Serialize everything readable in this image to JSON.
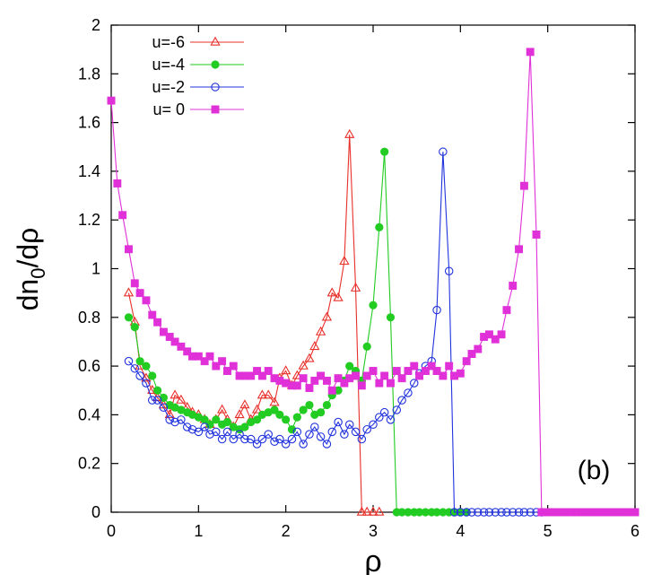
{
  "chart_data": {
    "type": "line",
    "title": "",
    "xlabel": "ρ",
    "ylabel_main": "dn",
    "ylabel_sub": "0",
    "ylabel_tail": "/dρ",
    "xlim": [
      0,
      6
    ],
    "ylim": [
      0,
      2
    ],
    "x_ticks": [
      0,
      1,
      2,
      3,
      4,
      5,
      6
    ],
    "x_tick_labels": [
      "0",
      "1",
      "2",
      "3",
      "4",
      "5",
      "6"
    ],
    "y_ticks": [
      0,
      0.2,
      0.4,
      0.6,
      0.8,
      1,
      1.2,
      1.4,
      1.6,
      1.8,
      2
    ],
    "y_tick_labels": [
      "0",
      "0.2",
      "0.4",
      "0.6",
      "0.8",
      "1",
      "1.2",
      "1.4",
      "1.6",
      "1.8",
      "2"
    ],
    "grid": false,
    "legend_position": "top-left",
    "annotation": "(b)",
    "series": [
      {
        "name": "u=-6",
        "color": "#e8302a",
        "marker": "triangle-open",
        "points": [
          [
            0.2,
            0.9
          ],
          [
            0.27,
            0.78
          ],
          [
            0.33,
            0.6
          ],
          [
            0.4,
            0.55
          ],
          [
            0.47,
            0.5
          ],
          [
            0.53,
            0.47
          ],
          [
            0.6,
            0.44
          ],
          [
            0.67,
            0.4
          ],
          [
            0.73,
            0.48
          ],
          [
            0.8,
            0.46
          ],
          [
            0.87,
            0.43
          ],
          [
            0.93,
            0.41
          ],
          [
            1.0,
            0.4
          ],
          [
            1.07,
            0.38
          ],
          [
            1.13,
            0.36
          ],
          [
            1.2,
            0.38
          ],
          [
            1.27,
            0.42
          ],
          [
            1.33,
            0.38
          ],
          [
            1.4,
            0.35
          ],
          [
            1.47,
            0.4
          ],
          [
            1.53,
            0.44
          ],
          [
            1.6,
            0.38
          ],
          [
            1.67,
            0.42
          ],
          [
            1.73,
            0.48
          ],
          [
            1.8,
            0.48
          ],
          [
            1.87,
            0.45
          ],
          [
            1.93,
            0.55
          ],
          [
            2.0,
            0.58
          ],
          [
            2.07,
            0.52
          ],
          [
            2.13,
            0.56
          ],
          [
            2.2,
            0.6
          ],
          [
            2.27,
            0.63
          ],
          [
            2.33,
            0.68
          ],
          [
            2.4,
            0.74
          ],
          [
            2.47,
            0.8
          ],
          [
            2.53,
            0.9
          ],
          [
            2.6,
            0.88
          ],
          [
            2.67,
            1.03
          ],
          [
            2.73,
            1.55
          ],
          [
            2.8,
            0.92
          ],
          [
            2.87,
            0.0
          ],
          [
            2.93,
            0.0
          ],
          [
            3.0,
            0.0
          ],
          [
            3.07,
            0.0
          ]
        ]
      },
      {
        "name": "u=-4",
        "color": "#22cc22",
        "marker": "circle-filled",
        "points": [
          [
            0.2,
            0.8
          ],
          [
            0.27,
            0.76
          ],
          [
            0.33,
            0.62
          ],
          [
            0.4,
            0.6
          ],
          [
            0.47,
            0.56
          ],
          [
            0.53,
            0.5
          ],
          [
            0.6,
            0.47
          ],
          [
            0.67,
            0.44
          ],
          [
            0.73,
            0.43
          ],
          [
            0.8,
            0.42
          ],
          [
            0.87,
            0.41
          ],
          [
            0.93,
            0.4
          ],
          [
            1.0,
            0.39
          ],
          [
            1.07,
            0.38
          ],
          [
            1.13,
            0.36
          ],
          [
            1.2,
            0.38
          ],
          [
            1.27,
            0.36
          ],
          [
            1.33,
            0.37
          ],
          [
            1.4,
            0.35
          ],
          [
            1.47,
            0.34
          ],
          [
            1.53,
            0.35
          ],
          [
            1.6,
            0.37
          ],
          [
            1.67,
            0.38
          ],
          [
            1.73,
            0.4
          ],
          [
            1.8,
            0.41
          ],
          [
            1.87,
            0.42
          ],
          [
            1.93,
            0.4
          ],
          [
            2.0,
            0.38
          ],
          [
            2.07,
            0.34
          ],
          [
            2.13,
            0.39
          ],
          [
            2.2,
            0.42
          ],
          [
            2.27,
            0.44
          ],
          [
            2.33,
            0.4
          ],
          [
            2.4,
            0.41
          ],
          [
            2.47,
            0.44
          ],
          [
            2.53,
            0.48
          ],
          [
            2.6,
            0.5
          ],
          [
            2.67,
            0.54
          ],
          [
            2.73,
            0.6
          ],
          [
            2.8,
            0.58
          ],
          [
            2.87,
            0.54
          ],
          [
            2.93,
            0.68
          ],
          [
            3.0,
            0.85
          ],
          [
            3.07,
            1.17
          ],
          [
            3.13,
            1.48
          ],
          [
            3.2,
            0.8
          ],
          [
            3.27,
            0.0
          ],
          [
            3.33,
            0.0
          ],
          [
            3.4,
            0.0
          ],
          [
            3.47,
            0.0
          ],
          [
            3.53,
            0.0
          ],
          [
            3.6,
            0.0
          ],
          [
            3.67,
            0.0
          ],
          [
            3.73,
            0.0
          ],
          [
            3.8,
            0.0
          ],
          [
            3.87,
            0.0
          ],
          [
            3.93,
            0.0
          ],
          [
            4.0,
            0.0
          ],
          [
            4.07,
            0.0
          ]
        ]
      },
      {
        "name": "u=-2",
        "color": "#2233dd",
        "marker": "circle-open",
        "points": [
          [
            0.2,
            0.62
          ],
          [
            0.27,
            0.59
          ],
          [
            0.33,
            0.56
          ],
          [
            0.4,
            0.53
          ],
          [
            0.47,
            0.46
          ],
          [
            0.53,
            0.46
          ],
          [
            0.6,
            0.43
          ],
          [
            0.67,
            0.38
          ],
          [
            0.73,
            0.37
          ],
          [
            0.8,
            0.38
          ],
          [
            0.87,
            0.35
          ],
          [
            0.93,
            0.34
          ],
          [
            1.0,
            0.33
          ],
          [
            1.07,
            0.35
          ],
          [
            1.13,
            0.32
          ],
          [
            1.2,
            0.33
          ],
          [
            1.27,
            0.3
          ],
          [
            1.33,
            0.33
          ],
          [
            1.4,
            0.3
          ],
          [
            1.47,
            0.32
          ],
          [
            1.53,
            0.3
          ],
          [
            1.6,
            0.3
          ],
          [
            1.67,
            0.28
          ],
          [
            1.73,
            0.3
          ],
          [
            1.8,
            0.32
          ],
          [
            1.87,
            0.29
          ],
          [
            1.93,
            0.3
          ],
          [
            2.0,
            0.28
          ],
          [
            2.07,
            0.3
          ],
          [
            2.13,
            0.33
          ],
          [
            2.2,
            0.28
          ],
          [
            2.27,
            0.32
          ],
          [
            2.33,
            0.35
          ],
          [
            2.4,
            0.31
          ],
          [
            2.47,
            0.28
          ],
          [
            2.53,
            0.33
          ],
          [
            2.6,
            0.37
          ],
          [
            2.67,
            0.32
          ],
          [
            2.73,
            0.36
          ],
          [
            2.8,
            0.33
          ],
          [
            2.87,
            0.3
          ],
          [
            2.93,
            0.34
          ],
          [
            3.0,
            0.36
          ],
          [
            3.07,
            0.39
          ],
          [
            3.13,
            0.41
          ],
          [
            3.2,
            0.38
          ],
          [
            3.27,
            0.42
          ],
          [
            3.33,
            0.46
          ],
          [
            3.4,
            0.49
          ],
          [
            3.47,
            0.53
          ],
          [
            3.53,
            0.57
          ],
          [
            3.6,
            0.6
          ],
          [
            3.67,
            0.62
          ],
          [
            3.73,
            0.83
          ],
          [
            3.8,
            1.48
          ],
          [
            3.87,
            0.99
          ],
          [
            3.93,
            0.0
          ],
          [
            4.0,
            0.0
          ],
          [
            4.07,
            0.0
          ],
          [
            4.13,
            0.0
          ],
          [
            4.2,
            0.0
          ],
          [
            4.27,
            0.0
          ],
          [
            4.33,
            0.0
          ],
          [
            4.4,
            0.0
          ],
          [
            4.47,
            0.0
          ],
          [
            4.53,
            0.0
          ],
          [
            4.6,
            0.0
          ],
          [
            4.67,
            0.0
          ],
          [
            4.73,
            0.0
          ],
          [
            4.8,
            0.0
          ],
          [
            4.87,
            0.0
          ],
          [
            4.93,
            0.0
          ]
        ]
      },
      {
        "name": "u= 0",
        "color": "#e030d8",
        "marker": "square-filled",
        "points": [
          [
            0.0,
            1.69
          ],
          [
            0.07,
            1.35
          ],
          [
            0.13,
            1.22
          ],
          [
            0.2,
            1.08
          ],
          [
            0.27,
            0.94
          ],
          [
            0.33,
            0.9
          ],
          [
            0.4,
            0.87
          ],
          [
            0.47,
            0.81
          ],
          [
            0.53,
            0.78
          ],
          [
            0.6,
            0.74
          ],
          [
            0.67,
            0.72
          ],
          [
            0.73,
            0.7
          ],
          [
            0.8,
            0.68
          ],
          [
            0.87,
            0.66
          ],
          [
            0.93,
            0.64
          ],
          [
            1.0,
            0.64
          ],
          [
            1.07,
            0.62
          ],
          [
            1.13,
            0.64
          ],
          [
            1.2,
            0.6
          ],
          [
            1.27,
            0.62
          ],
          [
            1.33,
            0.58
          ],
          [
            1.4,
            0.6
          ],
          [
            1.47,
            0.56
          ],
          [
            1.53,
            0.56
          ],
          [
            1.6,
            0.56
          ],
          [
            1.67,
            0.58
          ],
          [
            1.73,
            0.56
          ],
          [
            1.8,
            0.58
          ],
          [
            1.87,
            0.55
          ],
          [
            1.93,
            0.54
          ],
          [
            2.0,
            0.53
          ],
          [
            2.07,
            0.52
          ],
          [
            2.13,
            0.52
          ],
          [
            2.2,
            0.55
          ],
          [
            2.27,
            0.51
          ],
          [
            2.33,
            0.54
          ],
          [
            2.4,
            0.56
          ],
          [
            2.47,
            0.54
          ],
          [
            2.53,
            0.5
          ],
          [
            2.6,
            0.55
          ],
          [
            2.67,
            0.53
          ],
          [
            2.73,
            0.55
          ],
          [
            2.8,
            0.56
          ],
          [
            2.87,
            0.52
          ],
          [
            2.93,
            0.56
          ],
          [
            3.0,
            0.58
          ],
          [
            3.07,
            0.53
          ],
          [
            3.13,
            0.56
          ],
          [
            3.2,
            0.53
          ],
          [
            3.27,
            0.58
          ],
          [
            3.33,
            0.55
          ],
          [
            3.4,
            0.58
          ],
          [
            3.47,
            0.6
          ],
          [
            3.53,
            0.56
          ],
          [
            3.6,
            0.58
          ],
          [
            3.67,
            0.6
          ],
          [
            3.73,
            0.58
          ],
          [
            3.8,
            0.56
          ],
          [
            3.87,
            0.6
          ],
          [
            3.93,
            0.56
          ],
          [
            4.0,
            0.57
          ],
          [
            4.07,
            0.62
          ],
          [
            4.13,
            0.65
          ],
          [
            4.2,
            0.67
          ],
          [
            4.27,
            0.72
          ],
          [
            4.33,
            0.73
          ],
          [
            4.4,
            0.71
          ],
          [
            4.47,
            0.73
          ],
          [
            4.53,
            0.83
          ],
          [
            4.6,
            0.93
          ],
          [
            4.67,
            1.08
          ],
          [
            4.73,
            1.34
          ],
          [
            4.8,
            1.89
          ],
          [
            4.87,
            1.14
          ],
          [
            4.93,
            0.0
          ],
          [
            5.0,
            0.0
          ],
          [
            5.07,
            0.0
          ],
          [
            5.13,
            0.0
          ],
          [
            5.2,
            0.0
          ],
          [
            5.27,
            0.0
          ],
          [
            5.33,
            0.0
          ],
          [
            5.4,
            0.0
          ],
          [
            5.47,
            0.0
          ],
          [
            5.53,
            0.0
          ],
          [
            5.6,
            0.0
          ],
          [
            5.67,
            0.0
          ],
          [
            5.73,
            0.0
          ],
          [
            5.8,
            0.0
          ],
          [
            5.87,
            0.0
          ],
          [
            5.93,
            0.0
          ],
          [
            6.0,
            0.0
          ]
        ]
      }
    ]
  }
}
